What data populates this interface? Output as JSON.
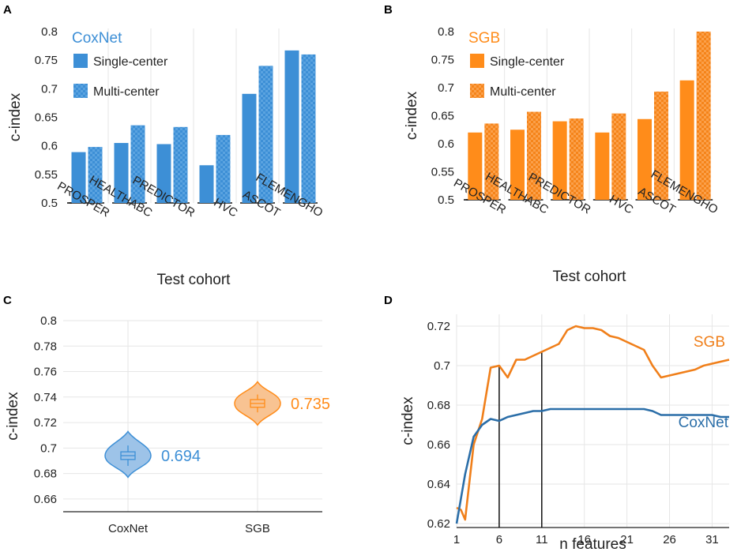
{
  "colors": {
    "coxnet": "#3d8fd6",
    "coxnet_line": "#2b6ea8",
    "coxnet_violin_fill": "#9dc3e8",
    "sgb": "#ff8c1a",
    "sgb_line": "#f07f1a",
    "sgb_violin_fill": "#f8c392",
    "grid": "#e6e6e6",
    "marker": "#000000"
  },
  "chart_data": [
    {
      "panel": "A",
      "type": "bar",
      "title": "CoxNet",
      "xlabel": "Test cohort",
      "ylabel": "c-index",
      "ylim": [
        0.5,
        0.8
      ],
      "yticks": [
        "0.5",
        "0.55",
        "0.6",
        "0.65",
        "0.7",
        "0.75",
        "0.8"
      ],
      "grid": "vertical",
      "legend": "top-left",
      "categories": [
        "PROSPER",
        "HEALTHABC",
        "PREDICTOR",
        "HVC",
        "ASCOT",
        "FLEMENGHO"
      ],
      "series": [
        {
          "name": "Single-center",
          "pattern": "solid",
          "values": [
            0.589,
            0.605,
            0.603,
            0.566,
            0.691,
            0.767
          ]
        },
        {
          "name": "Multi-center",
          "pattern": "checkered",
          "values": [
            0.598,
            0.636,
            0.633,
            0.619,
            0.74,
            0.76
          ]
        }
      ]
    },
    {
      "panel": "B",
      "type": "bar",
      "title": "SGB",
      "xlabel": "Test cohort",
      "ylabel": "c-index",
      "ylim": [
        0.5,
        0.8
      ],
      "yticks": [
        "0.5",
        "0.55",
        "0.6",
        "0.65",
        "0.7",
        "0.75",
        "0.8"
      ],
      "grid": "vertical",
      "legend": "top-left",
      "categories": [
        "PROSPER",
        "HEALTHABC",
        "PREDICTOR",
        "HVC",
        "ASCOT",
        "FLEMENGHO"
      ],
      "series": [
        {
          "name": "Single-center",
          "pattern": "solid",
          "values": [
            0.62,
            0.625,
            0.64,
            0.62,
            0.644,
            0.713
          ]
        },
        {
          "name": "Multi-center",
          "pattern": "checkered",
          "values": [
            0.636,
            0.657,
            0.645,
            0.654,
            0.693,
            0.8
          ]
        }
      ]
    },
    {
      "panel": "C",
      "type": "violin",
      "title": "",
      "xlabel": "",
      "ylabel": "c-index",
      "ylim": [
        0.65,
        0.8
      ],
      "yticks": [
        "0.66",
        "0.68",
        "0.7",
        "0.72",
        "0.74",
        "0.76",
        "0.78",
        "0.8"
      ],
      "grid": "both",
      "categories": [
        "CoxNet",
        "SGB"
      ],
      "series": [
        {
          "name": "CoxNet",
          "label": "0.694",
          "min": 0.677,
          "max": 0.713,
          "q1": 0.691,
          "median": 0.694,
          "q3": 0.697,
          "whisker_low": 0.686,
          "whisker_high": 0.702
        },
        {
          "name": "SGB",
          "label": "0.735",
          "min": 0.718,
          "max": 0.752,
          "q1": 0.732,
          "median": 0.735,
          "q3": 0.738,
          "whisker_low": 0.728,
          "whisker_high": 0.742
        }
      ]
    },
    {
      "panel": "D",
      "type": "line",
      "title": "",
      "xlabel": "n features",
      "ylabel": "c-index",
      "xlim": [
        1,
        33
      ],
      "ylim": [
        0.618,
        0.726
      ],
      "xticks": [
        "1",
        "6",
        "11",
        "16",
        "21",
        "26",
        "31"
      ],
      "yticks": [
        "0.62",
        "0.64",
        "0.66",
        "0.68",
        "0.7",
        "0.72"
      ],
      "grid": "both",
      "vertical_markers": [
        6,
        11
      ],
      "series": [
        {
          "name": "SGB",
          "x": [
            1,
            1.5,
            2,
            3,
            4,
            5,
            6,
            7,
            8,
            9,
            10,
            11,
            12,
            13,
            14,
            15,
            16,
            17,
            18,
            19,
            20,
            21,
            22,
            23,
            24,
            25,
            26,
            27,
            28,
            29,
            30,
            31,
            32,
            33
          ],
          "y": [
            0.628,
            0.627,
            0.622,
            0.66,
            0.673,
            0.699,
            0.7,
            0.694,
            0.703,
            0.703,
            0.705,
            0.707,
            0.709,
            0.711,
            0.718,
            0.72,
            0.719,
            0.719,
            0.718,
            0.715,
            0.714,
            0.712,
            0.71,
            0.708,
            0.7,
            0.694,
            0.695,
            0.696,
            0.697,
            0.698,
            0.7,
            0.701,
            0.702,
            0.703
          ]
        },
        {
          "name": "CoxNet",
          "x": [
            1,
            2,
            3,
            4,
            5,
            6,
            7,
            8,
            9,
            10,
            11,
            12,
            13,
            14,
            15,
            16,
            17,
            18,
            19,
            20,
            21,
            22,
            23,
            24,
            25,
            26,
            27,
            28,
            29,
            30,
            31,
            32,
            33
          ],
          "y": [
            0.62,
            0.645,
            0.664,
            0.67,
            0.673,
            0.672,
            0.674,
            0.675,
            0.676,
            0.677,
            0.677,
            0.678,
            0.678,
            0.678,
            0.678,
            0.678,
            0.678,
            0.678,
            0.678,
            0.678,
            0.678,
            0.678,
            0.678,
            0.677,
            0.675,
            0.675,
            0.675,
            0.675,
            0.675,
            0.675,
            0.675,
            0.674,
            0.674
          ]
        }
      ]
    }
  ]
}
